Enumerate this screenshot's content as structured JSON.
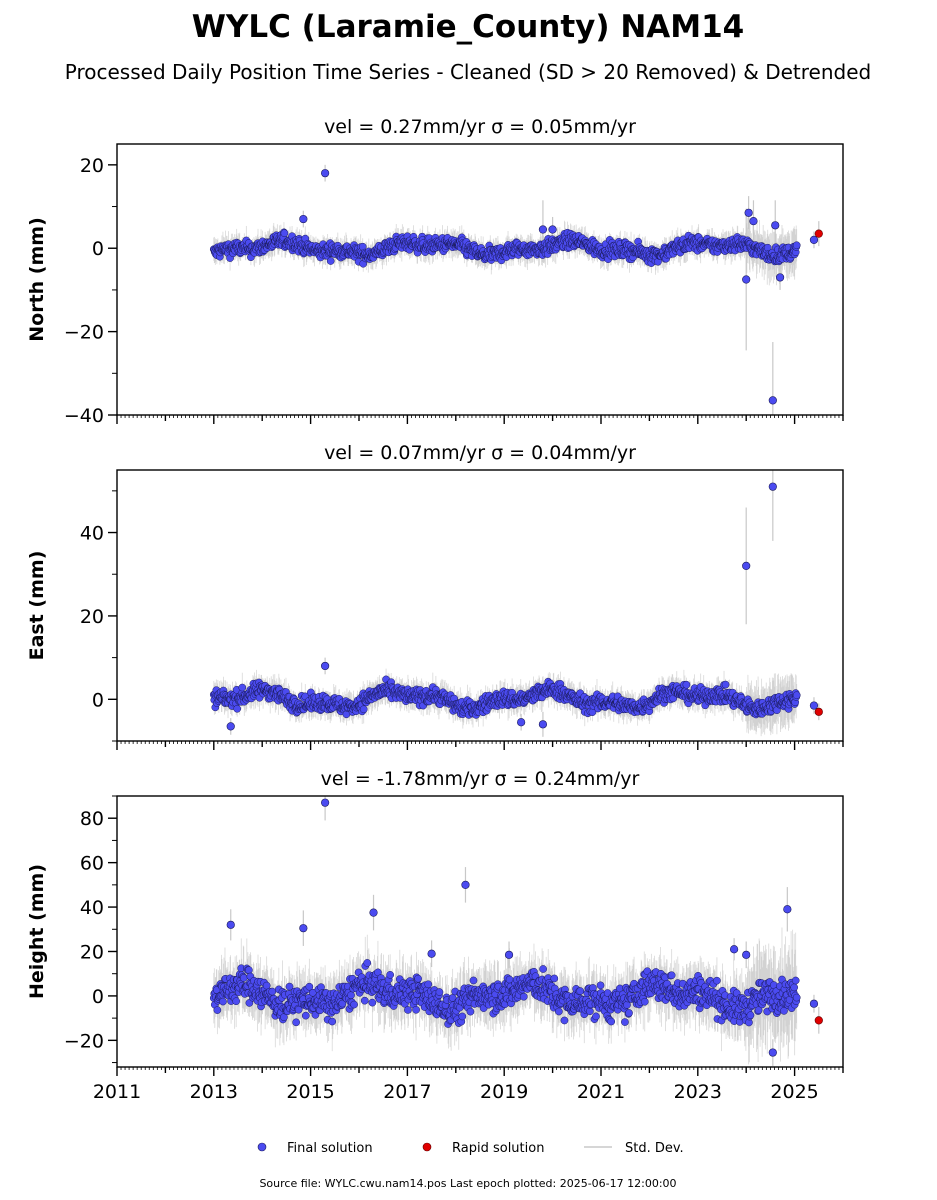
{
  "title": "WYLC (Laramie_County) NAM14",
  "subtitle": "Processed Daily Position Time Series - Cleaned (SD > 20 Removed) & Detrended",
  "footer": "Source file: WYLC.cwu.nam14.pos  Last epoch plotted: 2025-06-17 12:00:00",
  "legend": {
    "final": "Final solution",
    "rapid": "Rapid solution",
    "std": "Std. Dev."
  },
  "colors": {
    "final": "#4b4bf0",
    "final_edge": "#1a1a5a",
    "rapid": "#e00000",
    "std": "#c8c8c8"
  },
  "chart_data": [
    {
      "type": "scatter",
      "ylabel": "North (mm)",
      "title": "vel = 0.27mm/yr   σ = 0.05mm/yr",
      "xlim": [
        2011,
        2026
      ],
      "ylim": [
        -40,
        25
      ],
      "yticks": [
        20,
        0,
        -20,
        -40
      ],
      "band": {
        "x_range": [
          2013.0,
          2025.05
        ],
        "spread": 1.6,
        "wave": 1.2
      },
      "outliers": [
        {
          "x": 2014.85,
          "y": 7,
          "err": 2
        },
        {
          "x": 2015.3,
          "y": 18,
          "err": 2
        },
        {
          "x": 2019.8,
          "y": 4.5,
          "err": 7
        },
        {
          "x": 2020.0,
          "y": 4.5,
          "err": 3
        },
        {
          "x": 2024.0,
          "y": -7.5,
          "err": 17
        },
        {
          "x": 2024.05,
          "y": 8.5,
          "err": 4
        },
        {
          "x": 2024.15,
          "y": 6.5,
          "err": 5
        },
        {
          "x": 2024.55,
          "y": -36.5,
          "err": 14
        },
        {
          "x": 2024.6,
          "y": 5.5,
          "err": 6
        },
        {
          "x": 2024.7,
          "y": -7,
          "err": 3
        },
        {
          "x": 2025.4,
          "y": 2,
          "err": 2
        }
      ],
      "rapid": [
        {
          "x": 2025.5,
          "y": 3.5,
          "err": 3
        }
      ]
    },
    {
      "type": "scatter",
      "ylabel": "East (mm)",
      "title": "vel = 0.07mm/yr   σ = 0.04mm/yr",
      "xlim": [
        2011,
        2026
      ],
      "ylim": [
        -10,
        55
      ],
      "yticks": [
        40,
        20,
        0
      ],
      "band": {
        "x_range": [
          2013.0,
          2025.05
        ],
        "spread": 1.7,
        "wave": 1.6
      },
      "outliers": [
        {
          "x": 2013.35,
          "y": -6.5,
          "err": 2
        },
        {
          "x": 2015.3,
          "y": 8,
          "err": 2
        },
        {
          "x": 2019.35,
          "y": -5.5,
          "err": 2
        },
        {
          "x": 2019.8,
          "y": -6,
          "err": 3
        },
        {
          "x": 2024.0,
          "y": 32,
          "err": 14
        },
        {
          "x": 2024.55,
          "y": 51,
          "err": 13
        },
        {
          "x": 2025.4,
          "y": -1.5,
          "err": 2
        }
      ],
      "rapid": [
        {
          "x": 2025.5,
          "y": -3,
          "err": 2
        }
      ]
    },
    {
      "type": "scatter",
      "ylabel": "Height (mm)",
      "title": "vel = -1.78mm/yr   σ = 0.24mm/yr",
      "xlim": [
        2011,
        2026
      ],
      "ylim": [
        -32,
        90
      ],
      "yticks": [
        80,
        60,
        40,
        20,
        0,
        -20
      ],
      "band": {
        "x_range": [
          2013.0,
          2025.05
        ],
        "spread": 6.5,
        "wave": 4
      },
      "outliers": [
        {
          "x": 2013.35,
          "y": 32,
          "err": 7
        },
        {
          "x": 2014.85,
          "y": 30.5,
          "err": 8
        },
        {
          "x": 2015.3,
          "y": 87,
          "err": 8
        },
        {
          "x": 2016.3,
          "y": 37.5,
          "err": 8
        },
        {
          "x": 2017.5,
          "y": 19,
          "err": 6
        },
        {
          "x": 2018.2,
          "y": 50,
          "err": 8
        },
        {
          "x": 2019.1,
          "y": 18.5,
          "err": 6
        },
        {
          "x": 2023.75,
          "y": 21,
          "err": 5
        },
        {
          "x": 2024.0,
          "y": 18.5,
          "err": 6
        },
        {
          "x": 2024.85,
          "y": 39,
          "err": 10
        },
        {
          "x": 2024.55,
          "y": -25.5,
          "err": 6
        },
        {
          "x": 2025.4,
          "y": -3.5,
          "err": 4
        }
      ],
      "rapid": [
        {
          "x": 2025.5,
          "y": -11,
          "err": 6
        }
      ]
    }
  ],
  "x_tick_labels": [
    "2011",
    "2013",
    "2015",
    "2017",
    "2019",
    "2021",
    "2023",
    "2025"
  ]
}
